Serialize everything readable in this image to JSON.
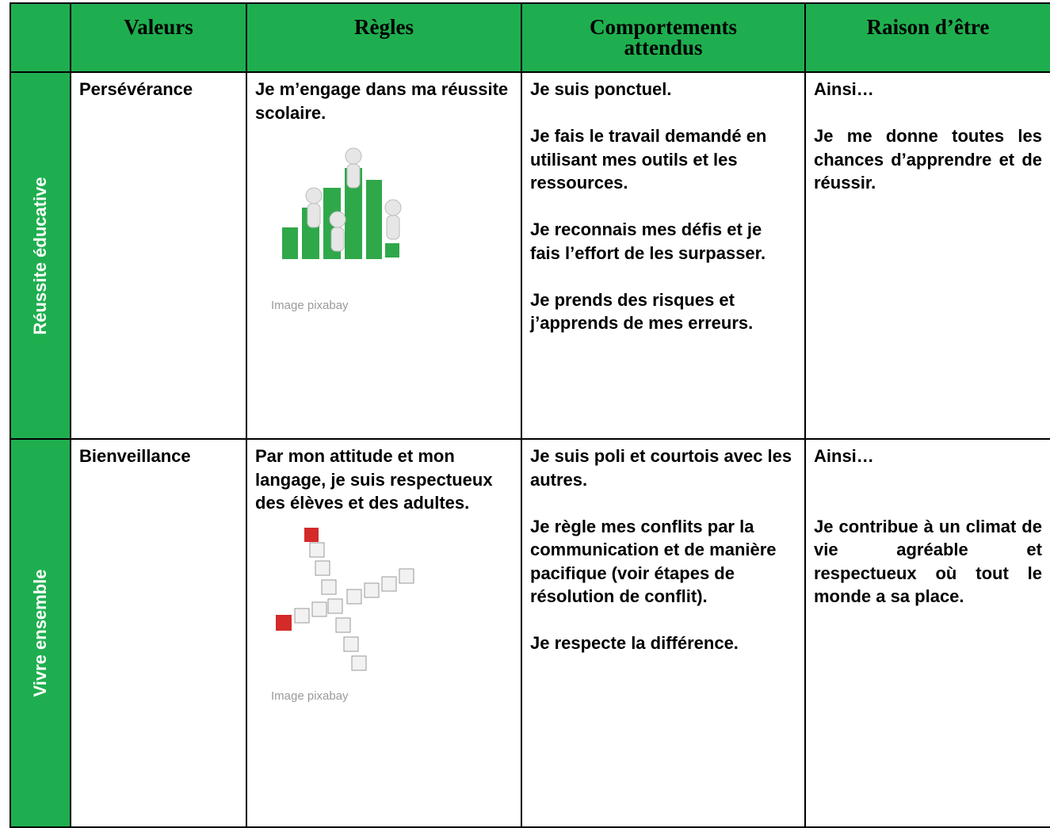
{
  "table": {
    "header": [
      "Valeurs",
      "Règles",
      "Comportements attendus",
      "Raison d’être"
    ],
    "rows": [
      {
        "section": "Réussite éducative",
        "value": "Persévérance",
        "rule": "Je m’engage dans ma réussite scolaire.",
        "image_caption": "Image pixabay",
        "behaviors": [
          "Je suis ponctuel.",
          "Je fais le travail demandé en utilisant mes outils et les ressources.",
          "Je reconnais mes défis et je fais l’effort de les surpasser.",
          "Je prends des risques et j’apprends de mes erreurs."
        ],
        "reason": [
          "Ainsi…",
          "Je me donne toutes les chances d’apprendre et de réussir."
        ]
      },
      {
        "section": "Vivre ensemble",
        "value": "Bienveillance",
        "rule": "Par mon attitude et mon langage, je suis respectueux des élèves et des adultes.",
        "image_caption": "Image pixabay",
        "behaviors": [
          "Je suis poli et courtois avec les autres.",
          "Je règle mes conflits par la communication et de manière pacifique (voir étapes de résolution de conflit).",
          "Je respecte la différence."
        ],
        "reason": [
          "Ainsi…",
          "Je contribue à un climat de vie agréable et respectueux où tout le monde a sa place."
        ]
      }
    ]
  }
}
